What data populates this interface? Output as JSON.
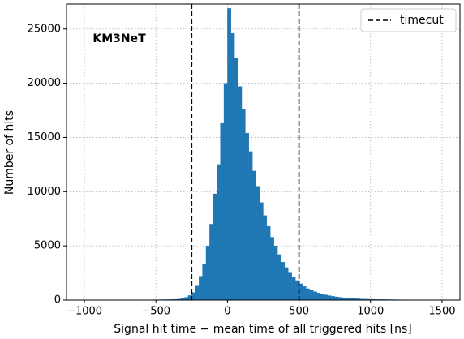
{
  "chart_data": {
    "type": "histogram",
    "annotation": "KM3NeT",
    "x_label": "Signal hit time − mean time of all triggered hits [ns]",
    "y_label": "Number of hits",
    "color": "#1f77b4",
    "bins": [
      -1000,
      -975,
      -950,
      -925,
      -900,
      -875,
      -850,
      -825,
      -800,
      -775,
      -750,
      -725,
      -700,
      -675,
      -650,
      -625,
      -600,
      -575,
      -550,
      -525,
      -500,
      -475,
      -450,
      -425,
      -400,
      -375,
      -350,
      -325,
      -300,
      -275,
      -250,
      -225,
      -200,
      -175,
      -150,
      -125,
      -100,
      -75,
      -50,
      -25,
      0,
      25,
      50,
      75,
      100,
      125,
      150,
      175,
      200,
      225,
      250,
      275,
      300,
      325,
      350,
      375,
      400,
      425,
      450,
      475,
      500,
      525,
      550,
      575,
      600,
      625,
      650,
      675,
      700,
      725,
      750,
      775,
      800,
      825,
      850,
      875,
      900,
      925,
      950,
      975,
      1000,
      1025,
      1050,
      1075,
      1100,
      1125,
      1150,
      1175,
      1200,
      1225,
      1250,
      1275,
      1300,
      1325,
      1350,
      1375,
      1400,
      1425,
      1450,
      1475,
      1500
    ],
    "counts": [
      10,
      10,
      10,
      12,
      12,
      12,
      14,
      14,
      15,
      15,
      16,
      18,
      18,
      20,
      20,
      22,
      24,
      26,
      28,
      30,
      32,
      36,
      40,
      46,
      55,
      70,
      100,
      160,
      260,
      420,
      700,
      1300,
      2200,
      3300,
      5000,
      7000,
      9800,
      12500,
      16300,
      20000,
      26900,
      24600,
      22300,
      19700,
      17600,
      15400,
      13700,
      11900,
      10500,
      9000,
      7800,
      6800,
      5800,
      5000,
      4200,
      3500,
      3000,
      2500,
      2100,
      1800,
      1500,
      1250,
      1050,
      900,
      780,
      660,
      560,
      480,
      410,
      350,
      300,
      260,
      220,
      190,
      160,
      140,
      120,
      100,
      90,
      80,
      72,
      65,
      58,
      52,
      47,
      42,
      38,
      34,
      30,
      27,
      24,
      22,
      20,
      18,
      16,
      14,
      12,
      11,
      10,
      9
    ],
    "vlines": {
      "name": "timecut",
      "color": "#000000",
      "values": [
        -250,
        500
      ]
    },
    "legend": "upper right",
    "grid": true,
    "xlim": [
      -1125,
      1625
    ],
    "ylim": [
      0,
      27300
    ],
    "xticks": [
      {
        "value": -1000,
        "label": "−1000"
      },
      {
        "value": -500,
        "label": "−500"
      },
      0,
      500,
      1000,
      1500
    ],
    "yticks": [
      0,
      5000,
      10000,
      15000,
      20000,
      25000
    ]
  }
}
